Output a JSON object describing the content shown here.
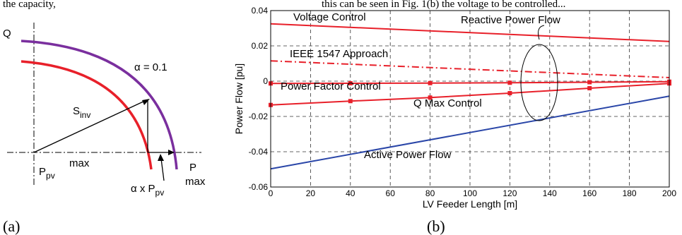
{
  "top_text": {
    "left": "the capacity,",
    "right": "this can be seen in Fig. 1(b) the voltage to be controlled..."
  },
  "panel_a": {
    "caption": "(a)",
    "q_label": "Q",
    "p_label": "P",
    "alpha_label": "α = 0.1",
    "s_label": "S",
    "s_sub": "inv",
    "ppv_label": "P",
    "ppv_sub": "pv",
    "ppv_sup": "max",
    "alpha_ppv_prefix": "α x P",
    "alpha_ppv_sub": "pv",
    "alpha_ppv_sup": "max"
  },
  "panel_b": {
    "caption": "(b)"
  },
  "chart_data": {
    "type": "line",
    "xlabel": "LV Feeder Length [m]",
    "ylabel": "Power Flow [pu]",
    "xlim": [
      0,
      200
    ],
    "ylim": [
      -0.06,
      0.04
    ],
    "xticks": [
      0,
      20,
      40,
      60,
      80,
      100,
      120,
      140,
      160,
      180,
      200
    ],
    "yticks": [
      -0.06,
      -0.04,
      -0.02,
      0,
      0.02,
      0.04
    ],
    "ytick_labels": [
      "-0.06",
      "-0.04",
      "-0.02",
      "0",
      "0.02",
      "0.04"
    ],
    "grid": true,
    "series": [
      {
        "name": "Voltage Control",
        "color": "#e8202a",
        "style": "solid",
        "x": [
          0,
          200
        ],
        "y": [
          0.0325,
          0.0225
        ]
      },
      {
        "name": "IEEE 1547 Approach",
        "color": "#e8202a",
        "style": "dashdot",
        "x": [
          0,
          200
        ],
        "y": [
          0.0115,
          0.002
        ]
      },
      {
        "name": "Power Factor Control",
        "color": "#e8202a",
        "style": "solid",
        "markers": true,
        "x": [
          0,
          40,
          80,
          120,
          160,
          200
        ],
        "y": [
          -0.0013,
          -0.0012,
          -0.0011,
          -0.0009,
          -0.0006,
          -0.0003
        ]
      },
      {
        "name": "Q Max Control",
        "color": "#e8202a",
        "style": "solid",
        "markers": true,
        "x": [
          0,
          40,
          80,
          120,
          160,
          200
        ],
        "y": [
          -0.0135,
          -0.0113,
          -0.0093,
          -0.0068,
          -0.004,
          -0.0013
        ]
      },
      {
        "name": "Active Power Flow",
        "color": "#2a46a8",
        "style": "solid",
        "x": [
          0,
          200
        ],
        "y": [
          -0.0497,
          -0.0085
        ]
      }
    ],
    "annotations": [
      {
        "text": "Reactive Power Flow"
      }
    ]
  }
}
